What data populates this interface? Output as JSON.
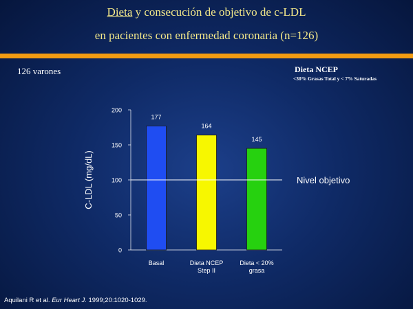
{
  "header": {
    "title_word": "Dieta",
    "title_rest": " y consecución de objetivo de c-LDL",
    "title_line2": "en pacientes con enfermedad coronaria (n=126)"
  },
  "subset_label": "126 varones",
  "diet_box": {
    "title": "Dieta NCEP",
    "detail": "<30% Grasas Total y < 7% Saturadas"
  },
  "citation": {
    "authors": "Aquilani R et al. ",
    "journal": "Eur Heart J.",
    "details": " 1999;20:1020-1029."
  },
  "colors": {
    "title": "#f4e98a",
    "accent_bar": "#f39c12",
    "bar_basal": "#1f4df2",
    "bar_step2": "#f7f700",
    "bar_low_fat": "#26d10f"
  },
  "chart_data": {
    "type": "bar",
    "ylabel": "C-LDL (mg/dL)",
    "ylim": [
      0,
      200
    ],
    "yticks": [
      0,
      50,
      100,
      150,
      200
    ],
    "categories": [
      {
        "line1": "Basal",
        "line2": ""
      },
      {
        "line1": "Dieta NCEP",
        "line2": "Step II"
      },
      {
        "line1": "Dieta < 20%",
        "line2": "grasa"
      }
    ],
    "values": [
      177,
      164,
      145
    ],
    "value_labels": [
      "177",
      "164",
      "145"
    ],
    "reference_line": {
      "value": 100,
      "label": "Nivel objetivo"
    }
  }
}
